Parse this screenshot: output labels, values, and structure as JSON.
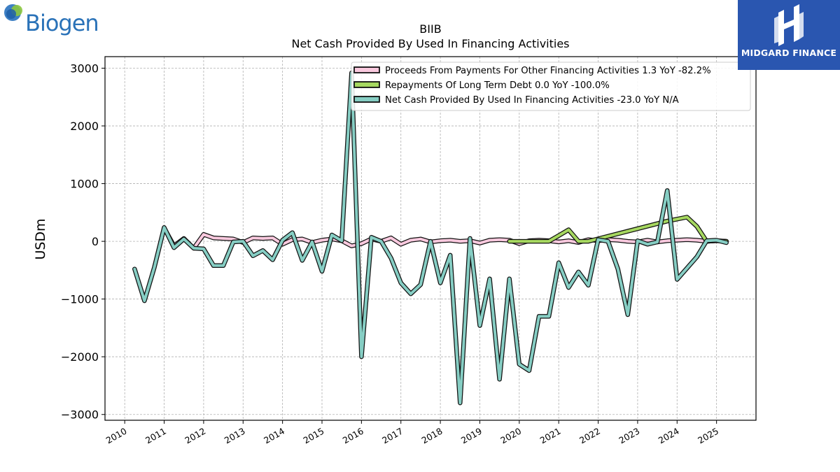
{
  "logos": {
    "left_text": "Biogen",
    "right_text": "MIDGARD FINANCE"
  },
  "colors": {
    "proceeds": "#f9c9de",
    "repayments": "#a6d860",
    "net_cash": "#86cec4",
    "outline": "#111111",
    "grid": "#b0b0b0",
    "logo_blue": "#2a56b0"
  },
  "chart_data": {
    "type": "line",
    "title": "BIIB",
    "subtitle": "Net Cash Provided By Used In Financing Activities",
    "ylabel": "USDm",
    "xlabel": "",
    "ylim": [
      -3100,
      3200
    ],
    "xlim": [
      2009.5,
      2026.0
    ],
    "yticks": [
      3000,
      2000,
      1000,
      0,
      -1000,
      -2000,
      -3000
    ],
    "ytick_labels": [
      "3000",
      "2000",
      "1000",
      "0",
      "−1000",
      "−2000",
      "−3000"
    ],
    "xticks": [
      2010,
      2011,
      2012,
      2013,
      2014,
      2015,
      2016,
      2017,
      2018,
      2019,
      2020,
      2021,
      2022,
      2023,
      2024,
      2025
    ],
    "xtick_labels": [
      "2010",
      "2011",
      "2012",
      "2013",
      "2014",
      "2015",
      "2016",
      "2017",
      "2018",
      "2019",
      "2020",
      "2021",
      "2022",
      "2023",
      "2024",
      "2025"
    ],
    "grid": true,
    "legend_position": "top-right",
    "series": [
      {
        "key": "proceeds",
        "name": "Proceeds From Payments For Other Financing Activities  1.3 YoY -82.2%",
        "points": [
          [
            2011.0,
            230
          ],
          [
            2011.25,
            -80
          ],
          [
            2011.5,
            50
          ],
          [
            2011.75,
            -120
          ],
          [
            2012.0,
            120
          ],
          [
            2012.25,
            60
          ],
          [
            2012.5,
            50
          ],
          [
            2012.75,
            40
          ],
          [
            2013.0,
            -20
          ],
          [
            2013.25,
            60
          ],
          [
            2013.5,
            50
          ],
          [
            2013.75,
            60
          ],
          [
            2014.0,
            -50
          ],
          [
            2014.25,
            30
          ],
          [
            2014.5,
            40
          ],
          [
            2014.75,
            -20
          ],
          [
            2015.0,
            20
          ],
          [
            2015.25,
            40
          ],
          [
            2015.5,
            10
          ],
          [
            2015.75,
            -80
          ],
          [
            2016.0,
            -40
          ],
          [
            2016.25,
            40
          ],
          [
            2016.5,
            0
          ],
          [
            2016.75,
            60
          ],
          [
            2017.0,
            -50
          ],
          [
            2017.25,
            20
          ],
          [
            2017.5,
            40
          ],
          [
            2017.75,
            -10
          ],
          [
            2018.0,
            10
          ],
          [
            2018.25,
            20
          ],
          [
            2018.5,
            0
          ],
          [
            2018.75,
            10
          ],
          [
            2019.0,
            -30
          ],
          [
            2019.25,
            20
          ],
          [
            2019.5,
            30
          ],
          [
            2019.75,
            20
          ],
          [
            2020.0,
            -40
          ],
          [
            2020.25,
            10
          ],
          [
            2020.5,
            20
          ],
          [
            2020.75,
            10
          ],
          [
            2021.0,
            -10
          ],
          [
            2021.25,
            10
          ],
          [
            2021.5,
            -20
          ],
          [
            2021.75,
            30
          ],
          [
            2022.0,
            10
          ],
          [
            2022.25,
            30
          ],
          [
            2022.5,
            20
          ],
          [
            2022.75,
            0
          ],
          [
            2023.0,
            -10
          ],
          [
            2023.25,
            20
          ],
          [
            2023.5,
            -10
          ],
          [
            2023.75,
            10
          ],
          [
            2024.0,
            20
          ],
          [
            2024.25,
            30
          ],
          [
            2024.5,
            20
          ],
          [
            2024.75,
            0
          ],
          [
            2025.0,
            10
          ],
          [
            2025.25,
            1.3
          ]
        ]
      },
      {
        "key": "repayments",
        "name": "Repayments Of Long Term Debt  0.0 YoY -100.0%",
        "points": [
          [
            2019.75,
            0
          ],
          [
            2020.0,
            0
          ],
          [
            2020.25,
            0
          ],
          [
            2020.5,
            0
          ],
          [
            2020.75,
            0
          ],
          [
            2021.0,
            100
          ],
          [
            2021.25,
            200
          ],
          [
            2021.5,
            0
          ],
          [
            2021.75,
            0
          ],
          [
            2023.75,
            350
          ],
          [
            2024.25,
            420
          ],
          [
            2024.5,
            260
          ],
          [
            2024.75,
            0
          ],
          [
            2025.0,
            10
          ],
          [
            2025.25,
            0
          ]
        ]
      },
      {
        "key": "net_cash",
        "name": "Net Cash Provided By Used In Financing Activities  -23.0 YoY N/A",
        "points": [
          [
            2010.25,
            -480
          ],
          [
            2010.5,
            -1030
          ],
          [
            2010.75,
            -450
          ],
          [
            2011.0,
            240
          ],
          [
            2011.25,
            -110
          ],
          [
            2011.5,
            40
          ],
          [
            2011.75,
            -120
          ],
          [
            2012.0,
            -130
          ],
          [
            2012.25,
            -420
          ],
          [
            2012.5,
            -420
          ],
          [
            2012.75,
            -10
          ],
          [
            2013.0,
            0
          ],
          [
            2013.25,
            -250
          ],
          [
            2013.5,
            -160
          ],
          [
            2013.75,
            -320
          ],
          [
            2014.0,
            20
          ],
          [
            2014.25,
            150
          ],
          [
            2014.5,
            -330
          ],
          [
            2014.75,
            -10
          ],
          [
            2015.0,
            -520
          ],
          [
            2015.25,
            110
          ],
          [
            2015.5,
            10
          ],
          [
            2015.75,
            2920
          ],
          [
            2016.0,
            -2000
          ],
          [
            2016.25,
            70
          ],
          [
            2016.5,
            0
          ],
          [
            2016.75,
            -290
          ],
          [
            2017.0,
            -720
          ],
          [
            2017.25,
            -910
          ],
          [
            2017.5,
            -750
          ],
          [
            2017.75,
            0
          ],
          [
            2018.0,
            -720
          ],
          [
            2018.25,
            -240
          ],
          [
            2018.5,
            -2800
          ],
          [
            2018.75,
            50
          ],
          [
            2019.0,
            -1460
          ],
          [
            2019.25,
            -650
          ],
          [
            2019.5,
            -2390
          ],
          [
            2019.75,
            -650
          ],
          [
            2020.0,
            -2130
          ],
          [
            2020.25,
            -2240
          ],
          [
            2020.5,
            -1300
          ],
          [
            2020.75,
            -1300
          ],
          [
            2021.0,
            -370
          ],
          [
            2021.25,
            -800
          ],
          [
            2021.5,
            -530
          ],
          [
            2021.75,
            -760
          ],
          [
            2022.0,
            30
          ],
          [
            2022.25,
            0
          ],
          [
            2022.5,
            -480
          ],
          [
            2022.75,
            -1270
          ],
          [
            2023.0,
            10
          ],
          [
            2023.25,
            -50
          ],
          [
            2023.5,
            -10
          ],
          [
            2023.75,
            880
          ],
          [
            2024.0,
            -660
          ],
          [
            2024.5,
            -270
          ],
          [
            2024.75,
            10
          ],
          [
            2025.0,
            20
          ],
          [
            2025.25,
            -23
          ]
        ]
      }
    ]
  }
}
